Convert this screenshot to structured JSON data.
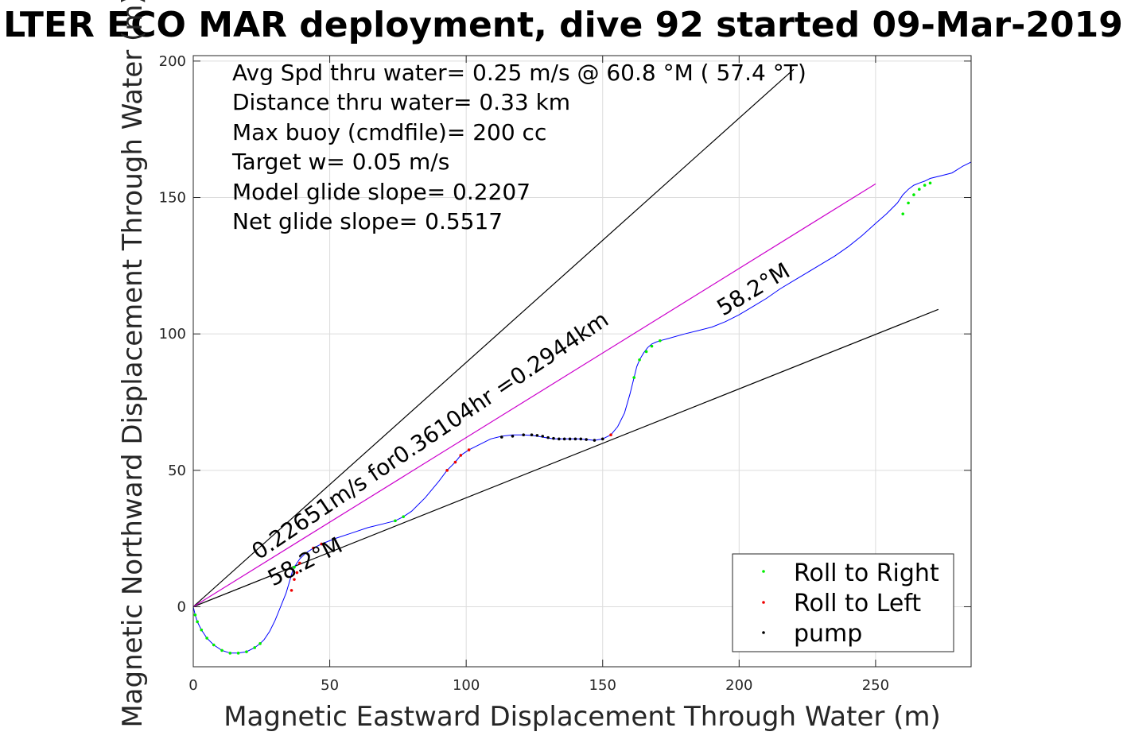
{
  "chart_data": {
    "type": "line",
    "title": "LTER ECO MAR deployment, dive 92 started 09-Mar-2019",
    "xlabel": "Magnetic Eastward Displacement Through Water (m)",
    "ylabel": "Magnetic Northward Displacement Through Water (m)",
    "xlim": [
      0,
      285
    ],
    "ylim": [
      -22,
      202
    ],
    "xticks": [
      0,
      50,
      100,
      150,
      200,
      250
    ],
    "yticks": [
      0,
      50,
      100,
      150,
      200
    ],
    "grid": true,
    "legend_position": "bottom-right",
    "info_lines": [
      "Avg Spd thru water=  0.25 m/s @  60.8 °M ( 57.4 °T)",
      "Distance thru water=  0.33 km",
      "Max buoy (cmdfile)= 200 cc",
      "Target w= 0.05 m/s",
      "Model glide slope= 0.2207",
      "Net glide slope= 0.5517"
    ],
    "annotations": {
      "speed_line": "0.22651m/s for0.36104hr =0.2944km",
      "heading_lower": "58.2°M",
      "heading_upper": "58.2°M"
    },
    "reference_lines": [
      {
        "name": "",
        "color": "#000000",
        "x": [
          0,
          220
        ],
        "y": [
          0,
          197
        ]
      },
      {
        "name": "",
        "color": "#000000",
        "x": [
          0,
          273
        ],
        "y": [
          0,
          109
        ]
      },
      {
        "name": "",
        "color": "#cc00cc",
        "x": [
          0,
          250
        ],
        "y": [
          0,
          155
        ]
      }
    ],
    "track": {
      "color": "#0000ff",
      "x": [
        0,
        0.7,
        1.5,
        3,
        5,
        7.5,
        10.5,
        13.5,
        16.5,
        19.5,
        22.5,
        24.5,
        26,
        28,
        30,
        32,
        34,
        35.5,
        36.2,
        37,
        38,
        39,
        41,
        44,
        47,
        52,
        58,
        64,
        70,
        74,
        77,
        80,
        85,
        90,
        93,
        96,
        98,
        101,
        105,
        109,
        113,
        117,
        121,
        124,
        126,
        129,
        132,
        135,
        138,
        141,
        144,
        147,
        150,
        153,
        155.5,
        158,
        160,
        161.5,
        162.5,
        163.5,
        165,
        166.5,
        168,
        169.5,
        171,
        174,
        180,
        185,
        190,
        195,
        200,
        205,
        210,
        215,
        220,
        225,
        230,
        235,
        240,
        245,
        250,
        254,
        258,
        260,
        262,
        264,
        266,
        268,
        270,
        274,
        278,
        282,
        285
      ],
      "y": [
        0,
        -3,
        -5.5,
        -8.5,
        -11.5,
        -14,
        -16,
        -17,
        -17,
        -16.5,
        -15,
        -13.5,
        -12,
        -9,
        -5,
        0,
        5,
        10,
        12.5,
        14.5,
        16,
        17.5,
        19.5,
        21.5,
        23,
        25,
        27,
        29,
        30.5,
        31.5,
        33,
        35,
        40,
        46,
        50,
        53,
        55.5,
        57.5,
        59.5,
        61.5,
        62.5,
        63,
        63,
        62.8,
        62.5,
        62,
        61.5,
        61.5,
        61.5,
        61.5,
        61.3,
        61,
        61.5,
        63,
        66,
        71,
        78,
        84,
        88,
        90.5,
        93,
        95,
        96.3,
        97,
        97.5,
        98.3,
        100,
        101.2,
        102.5,
        104.5,
        107,
        110,
        113,
        116.5,
        119.5,
        122.5,
        125.5,
        128.5,
        132,
        136,
        140.5,
        144,
        148,
        151,
        153,
        154.5,
        155.3,
        156,
        157,
        158,
        159,
        161.5,
        163
      ]
    },
    "markers": [
      {
        "series": "Roll to Right",
        "color": "#00ee00",
        "x": [
          0.7,
          1.5,
          3,
          5,
          7.5,
          10.5,
          13.5,
          16.5,
          19.5,
          22.5,
          24.5,
          37,
          74,
          77,
          161.5,
          163.5,
          166,
          168,
          171,
          260,
          262,
          264,
          266,
          268,
          270
        ],
        "y": [
          -3,
          -5.5,
          -8.5,
          -11.5,
          -14,
          -16,
          -17,
          -17,
          -16.5,
          -15,
          -13.5,
          14.5,
          31.5,
          33,
          84,
          90.5,
          93.5,
          95.5,
          97.5,
          144,
          148,
          151,
          153,
          154.5,
          155.3
        ]
      },
      {
        "series": "Roll to Left",
        "color": "#ee0000",
        "x": [
          36,
          37,
          38,
          39,
          44,
          47,
          93,
          96,
          98,
          101,
          153
        ],
        "y": [
          6,
          10,
          12.5,
          16,
          21.5,
          23,
          50,
          53,
          55.5,
          57.5,
          63
        ]
      },
      {
        "series": "pump",
        "color": "#000000",
        "x": [
          113,
          117,
          121,
          124,
          126,
          128,
          130,
          132,
          134,
          136,
          138,
          140,
          142,
          144,
          147,
          150
        ],
        "y": [
          62.2,
          62.5,
          63,
          63,
          62.8,
          62.5,
          62,
          61.7,
          61.5,
          61.5,
          61.5,
          61.5,
          61.5,
          61.3,
          61,
          61.5
        ]
      }
    ],
    "legend": [
      {
        "label": "Roll to Right",
        "color": "#00ee00"
      },
      {
        "label": "Roll to Left",
        "color": "#ee0000"
      },
      {
        "label": "pump",
        "color": "#000000"
      }
    ]
  }
}
